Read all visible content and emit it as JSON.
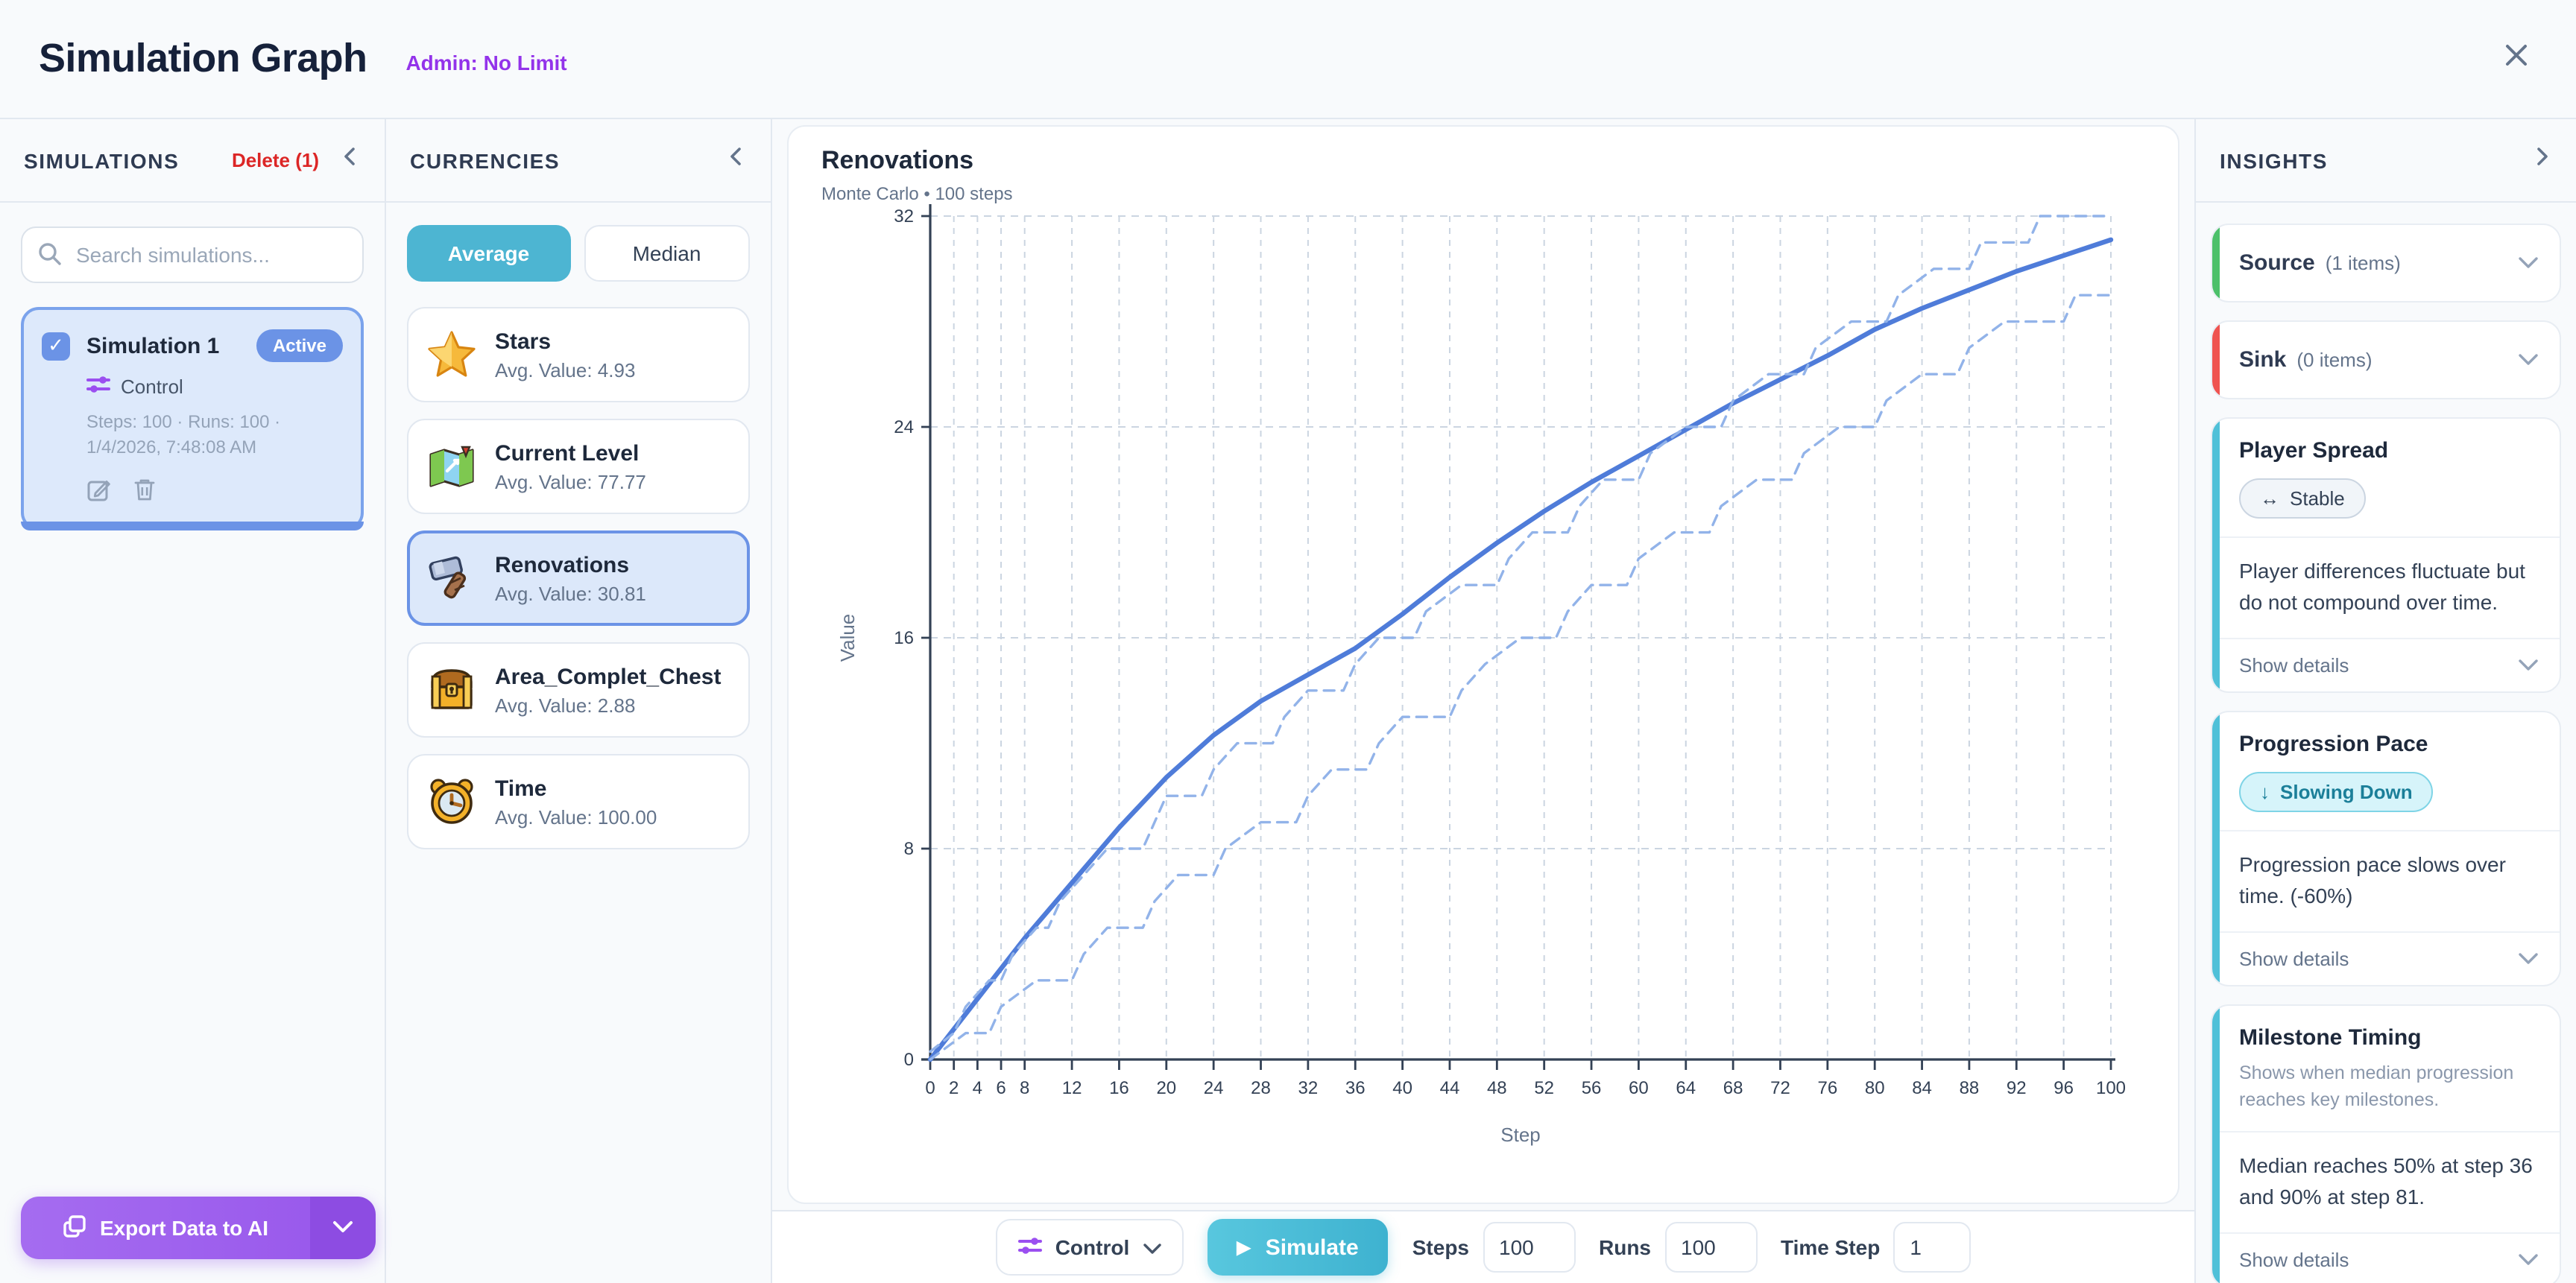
{
  "header": {
    "title": "Simulation Graph",
    "admin_label": "Admin: No Limit"
  },
  "simulations_panel": {
    "title": "SIMULATIONS",
    "delete_label": "Delete (1)",
    "search_placeholder": "Search simulations...",
    "card": {
      "name": "Simulation 1",
      "badge": "Active",
      "mode": "Control",
      "meta_line1": "Steps: 100 · Runs: 100 ·",
      "meta_line2": "1/4/2026, 7:48:08 AM",
      "checked": "✓"
    }
  },
  "currencies_panel": {
    "title": "CURRENCIES",
    "toggle": {
      "average": "Average",
      "median": "Median",
      "active": "Average"
    },
    "items": [
      {
        "name": "Stars",
        "value_label": "Avg. Value: 4.93",
        "icon": "star-icon"
      },
      {
        "name": "Current Level",
        "value_label": "Avg. Value: 77.77",
        "icon": "map-icon"
      },
      {
        "name": "Renovations",
        "value_label": "Avg. Value: 30.81",
        "icon": "hammer-icon",
        "selected": true
      },
      {
        "name": "Area_Complet_Chest",
        "value_label": "Avg. Value: 2.88",
        "icon": "chest-icon"
      },
      {
        "name": "Time",
        "value_label": "Avg. Value: 100.00",
        "icon": "clock-icon"
      }
    ]
  },
  "chart_data": {
    "type": "line",
    "title": "Renovations",
    "subtitle": "Monte Carlo • 100 steps",
    "xlabel": "Step",
    "ylabel": "Value",
    "xlim": [
      0,
      100
    ],
    "ylim": [
      0,
      32
    ],
    "y_ticks": [
      0,
      8,
      16,
      24,
      32
    ],
    "x_ticks": [
      0,
      2,
      4,
      6,
      8,
      12,
      16,
      20,
      24,
      28,
      32,
      36,
      40,
      44,
      48,
      52,
      56,
      60,
      64,
      68,
      72,
      76,
      80,
      84,
      88,
      92,
      96,
      100
    ],
    "grid": "dashed",
    "colors": {
      "median": "#4f7cd9",
      "band": "#92b3e9",
      "grid": "#cbd5e1",
      "axis": "#334155"
    },
    "series": [
      {
        "name": "median",
        "style": "solid",
        "points": [
          [
            0,
            0
          ],
          [
            4,
            2.3
          ],
          [
            8,
            4.6
          ],
          [
            12,
            6.7
          ],
          [
            16,
            8.8
          ],
          [
            20,
            10.7
          ],
          [
            24,
            12.3
          ],
          [
            28,
            13.6
          ],
          [
            32,
            14.6
          ],
          [
            36,
            15.6
          ],
          [
            40,
            16.9
          ],
          [
            44,
            18.3
          ],
          [
            48,
            19.6
          ],
          [
            52,
            20.8
          ],
          [
            56,
            21.9
          ],
          [
            60,
            22.9
          ],
          [
            64,
            23.9
          ],
          [
            68,
            24.9
          ],
          [
            72,
            25.8
          ],
          [
            76,
            26.7
          ],
          [
            80,
            27.7
          ],
          [
            84,
            28.5
          ],
          [
            88,
            29.2
          ],
          [
            92,
            29.9
          ],
          [
            96,
            30.5
          ],
          [
            100,
            31.1
          ]
        ]
      },
      {
        "name": "upper-band",
        "style": "dashed",
        "points": [
          [
            0,
            0.3
          ],
          [
            2,
            1
          ],
          [
            3,
            2
          ],
          [
            5,
            3
          ],
          [
            6,
            3
          ],
          [
            7,
            4
          ],
          [
            9,
            5
          ],
          [
            10,
            5
          ],
          [
            11,
            6
          ],
          [
            13,
            7
          ],
          [
            15,
            8
          ],
          [
            18,
            8
          ],
          [
            19,
            9
          ],
          [
            20,
            10
          ],
          [
            23,
            10
          ],
          [
            24,
            11
          ],
          [
            26,
            12
          ],
          [
            29,
            12
          ],
          [
            30,
            13
          ],
          [
            32,
            14
          ],
          [
            35,
            14
          ],
          [
            36,
            15
          ],
          [
            38,
            16
          ],
          [
            41,
            16
          ],
          [
            42,
            17
          ],
          [
            45,
            18
          ],
          [
            48,
            18
          ],
          [
            49,
            19
          ],
          [
            51,
            20
          ],
          [
            54,
            20
          ],
          [
            55,
            21
          ],
          [
            57,
            22
          ],
          [
            60,
            22
          ],
          [
            61,
            23
          ],
          [
            64,
            24
          ],
          [
            67,
            24
          ],
          [
            68,
            25
          ],
          [
            71,
            26
          ],
          [
            74,
            26
          ],
          [
            75,
            27
          ],
          [
            78,
            28
          ],
          [
            81,
            28
          ],
          [
            82,
            29
          ],
          [
            85,
            30
          ],
          [
            88,
            30
          ],
          [
            89,
            31
          ],
          [
            93,
            31
          ],
          [
            94,
            32
          ],
          [
            100,
            32
          ]
        ]
      },
      {
        "name": "lower-band",
        "style": "dashed",
        "points": [
          [
            0,
            0
          ],
          [
            3,
            1
          ],
          [
            5,
            1
          ],
          [
            6,
            2
          ],
          [
            9,
            3
          ],
          [
            12,
            3
          ],
          [
            13,
            4
          ],
          [
            15,
            5
          ],
          [
            18,
            5
          ],
          [
            19,
            6
          ],
          [
            21,
            7
          ],
          [
            24,
            7
          ],
          [
            25,
            8
          ],
          [
            28,
            9
          ],
          [
            31,
            9
          ],
          [
            32,
            10
          ],
          [
            34,
            11
          ],
          [
            37,
            11
          ],
          [
            38,
            12
          ],
          [
            40,
            13
          ],
          [
            44,
            13
          ],
          [
            45,
            14
          ],
          [
            47,
            15
          ],
          [
            50,
            16
          ],
          [
            53,
            16
          ],
          [
            54,
            17
          ],
          [
            56,
            18
          ],
          [
            59,
            18
          ],
          [
            60,
            19
          ],
          [
            63,
            20
          ],
          [
            66,
            20
          ],
          [
            67,
            21
          ],
          [
            70,
            22
          ],
          [
            73,
            22
          ],
          [
            74,
            23
          ],
          [
            77,
            24
          ],
          [
            80,
            24
          ],
          [
            81,
            25
          ],
          [
            84,
            26
          ],
          [
            87,
            26
          ],
          [
            88,
            27
          ],
          [
            91,
            28
          ],
          [
            96,
            28
          ],
          [
            97,
            29
          ],
          [
            100,
            29
          ]
        ]
      }
    ]
  },
  "controls": {
    "control_label": "Control",
    "simulate_label": "Simulate",
    "play_icon": "▶",
    "steps_label": "Steps",
    "steps_value": "100",
    "runs_label": "Runs",
    "runs_value": "100",
    "time_step_label": "Time Step",
    "time_step_value": "1"
  },
  "export_button": {
    "label": "Export Data to AI"
  },
  "insights_panel": {
    "title": "INSIGHTS",
    "groups": [
      {
        "label": "Source",
        "count": "(1 items)",
        "accent": "#4cc06a"
      },
      {
        "label": "Sink",
        "count": "(0 items)",
        "accent": "#ef5350"
      }
    ],
    "accent_teal": "#4fc0d8",
    "cards": [
      {
        "title": "Player Spread",
        "badge_icon": "↔",
        "badge_text": "Stable",
        "body": "Player differences fluctuate but do not compound over time.",
        "footer": "Show details"
      },
      {
        "title": "Progression Pace",
        "badge_icon": "↓",
        "badge_text": "Slowing Down",
        "body": "Progression pace slows over time. (-60%)",
        "footer": "Show details"
      },
      {
        "title": "Milestone Timing",
        "subtitle": "Shows when median progression reaches key milestones.",
        "body": "Median reaches 50% at step 36 and 90% at step 81.",
        "footer": "Show details"
      }
    ]
  }
}
